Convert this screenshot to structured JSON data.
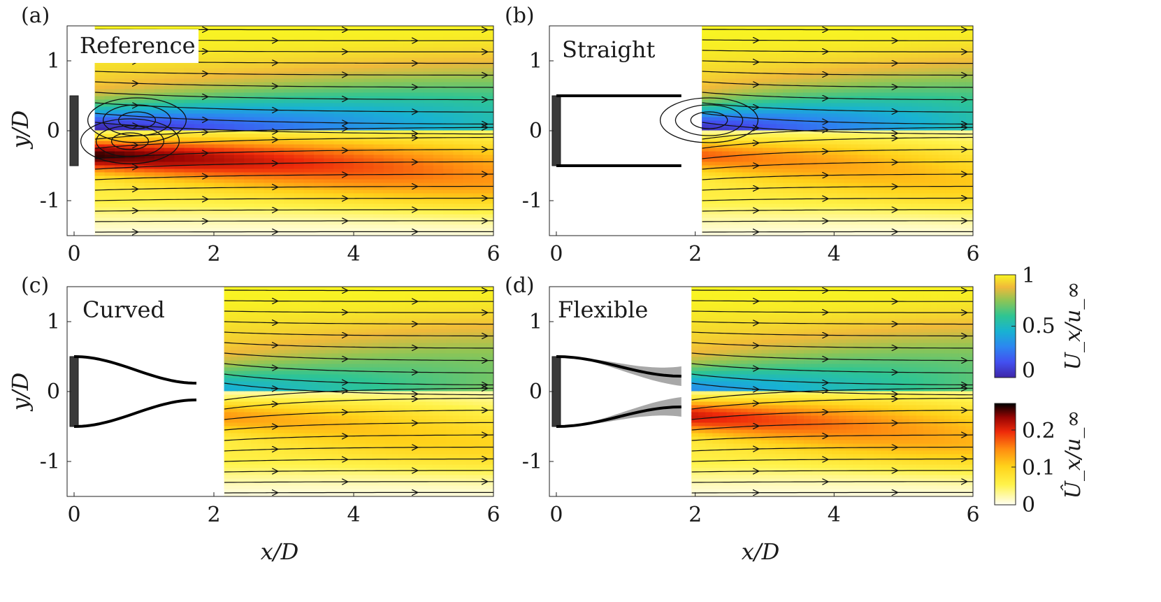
{
  "chart_data": {
    "type": "heatmap",
    "description_axes": {
      "xlabel": "x/D",
      "ylabel": "y/D"
    },
    "panels": [
      {
        "label": "(a)",
        "name": "Reference",
        "xlim": [
          -0.1,
          6
        ],
        "ylim": [
          -1.5,
          1.5
        ],
        "xticks": [
          0,
          2,
          4,
          6
        ],
        "xtick_labels": [
          "0",
          "2",
          "4",
          "6"
        ],
        "yticks": [
          1,
          0,
          -1
        ],
        "ytick_labels": [
          "1",
          "0",
          "-1"
        ],
        "show_xlabel": false,
        "show_ylabel": true,
        "field_x_start": 0.3,
        "plate_outline": "none",
        "upper_min_velocity": 0.02,
        "lower_peak_fluctuation": 0.25,
        "upper_recirculation_center": [
          0.9,
          0.15
        ],
        "lower_recirculation_center": [
          0.8,
          -0.15
        ]
      },
      {
        "label": "(b)",
        "name": "Straight",
        "xlim": [
          -0.1,
          6
        ],
        "ylim": [
          -1.5,
          1.5
        ],
        "xticks": [
          0,
          2,
          4,
          6
        ],
        "xtick_labels": [
          "0",
          "2",
          "4",
          "6"
        ],
        "yticks": [
          1,
          0,
          -1
        ],
        "ytick_labels": [
          "1",
          "0",
          "-1"
        ],
        "show_xlabel": false,
        "show_ylabel": false,
        "field_x_start": 2.1,
        "plate_outline": "straight",
        "plate_end_x": 1.8,
        "plate_half_gap": 0.5,
        "upper_min_velocity": 0.05,
        "lower_peak_fluctuation": 0.16,
        "upper_recirculation_center": [
          2.2,
          0.15
        ],
        "lower_recirculation_center": null
      },
      {
        "label": "(c)",
        "name": "Curved",
        "xlim": [
          -0.1,
          6
        ],
        "ylim": [
          -1.5,
          1.5
        ],
        "xticks": [
          0,
          2,
          4,
          6
        ],
        "xtick_labels": [
          "0",
          "2",
          "4",
          "6"
        ],
        "yticks": [
          1,
          0,
          -1
        ],
        "ytick_labels": [
          "1",
          "0",
          "-1"
        ],
        "show_xlabel": true,
        "show_ylabel": true,
        "field_x_start": 2.15,
        "plate_outline": "curved",
        "plate_end_x": 1.75,
        "plate_half_gap": 0.5,
        "plate_tip_half_gap": 0.12,
        "upper_min_velocity": 0.45,
        "lower_peak_fluctuation": 0.13,
        "upper_recirculation_center": null,
        "lower_recirculation_center": null
      },
      {
        "label": "(d)",
        "name": "Flexible",
        "xlim": [
          -0.1,
          6
        ],
        "ylim": [
          -1.5,
          1.5
        ],
        "xticks": [
          0,
          2,
          4,
          6
        ],
        "xtick_labels": [
          "0",
          "2",
          "4",
          "6"
        ],
        "yticks": [
          1,
          0,
          -1
        ],
        "ytick_labels": [
          "1",
          "0",
          "-1"
        ],
        "show_xlabel": true,
        "show_ylabel": false,
        "field_x_start": 1.95,
        "plate_outline": "flexible",
        "plate_end_x": 1.8,
        "plate_half_gap": 0.5,
        "plate_tip_half_gap": 0.22,
        "plate_tip_spread": 0.14,
        "upper_min_velocity": 0.35,
        "lower_peak_fluctuation": 0.2,
        "upper_recirculation_center": null,
        "lower_recirculation_center": null
      }
    ],
    "colorbars": [
      {
        "name": "mean-velocity",
        "label": "U_x/u_∞",
        "range": [
          0,
          1
        ],
        "ticks": [
          "1",
          "0.5",
          "0"
        ],
        "tick_values": [
          1,
          0.5,
          0
        ],
        "colormap": "parula"
      },
      {
        "name": "velocity-fluctuation",
        "label": "Û_x/u_∞",
        "range": [
          0,
          0.27
        ],
        "ticks": [
          "0.2",
          "0.1",
          "0"
        ],
        "tick_values": [
          0.2,
          0.1,
          0
        ],
        "colormap": "hot-reversed"
      }
    ],
    "streamline_y_starts": [
      -1.45,
      -1.3,
      -1.15,
      -1.0,
      -0.85,
      -0.7,
      -0.55,
      -0.4,
      -0.25,
      -0.12,
      0.12,
      0.25,
      0.4,
      0.55,
      0.7,
      0.85,
      1.0,
      1.15,
      1.3,
      1.45
    ],
    "arrow_x_positions": [
      0.9,
      1.9,
      2.9,
      3.9,
      4.9,
      5.9
    ]
  },
  "labels": {
    "a": "(a)",
    "b": "(b)",
    "c": "(c)",
    "d": "(d)",
    "reference": "Reference",
    "straight": "Straight",
    "curved": "Curved",
    "flexible": "Flexible",
    "xlabel": "x/D",
    "ylabel": "y/D",
    "cb_mean": "U_x/u_∞",
    "cb_fluct": "Û_x/u_∞"
  }
}
